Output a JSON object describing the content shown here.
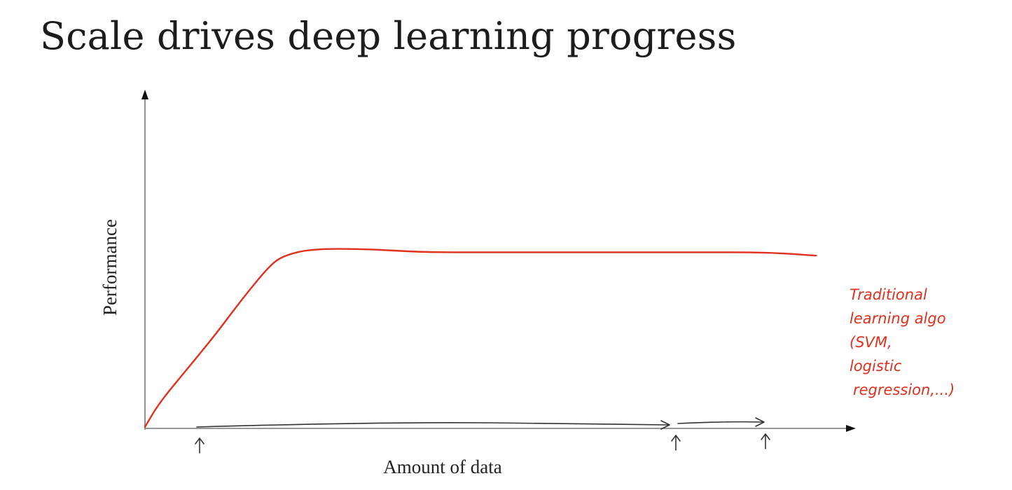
{
  "slide": {
    "title": "Scale drives deep learning progress"
  },
  "chart_data": {
    "type": "line",
    "title": "Scale drives deep learning progress",
    "xlabel": "Amount of data",
    "ylabel": "Performance",
    "xlim": [
      0,
      1
    ],
    "ylim": [
      0,
      1
    ],
    "grid": false,
    "legend": "none",
    "series": [
      {
        "name": "Traditional learning algo (SVM, logistic regression,...)",
        "color": "#e0301e",
        "x": [
          0,
          0.02,
          0.06,
          0.1,
          0.14,
          0.18,
          0.2,
          0.24,
          0.32,
          0.4,
          0.5,
          0.6,
          0.7,
          0.8,
          0.9,
          0.97
        ],
        "y": [
          0,
          0.07,
          0.17,
          0.27,
          0.38,
          0.48,
          0.51,
          0.53,
          0.53,
          0.52,
          0.52,
          0.52,
          0.52,
          0.52,
          0.52,
          0.51
        ]
      }
    ],
    "annotations": [
      {
        "lines": [
          "Traditional",
          "learning algo",
          "(SVM,",
          "logistic",
          "regression,...)"
        ],
        "color": "#e0301e"
      }
    ],
    "data_range_marks": {
      "description": "hand-drawn arrows along the x axis",
      "color": "#333333"
    }
  }
}
